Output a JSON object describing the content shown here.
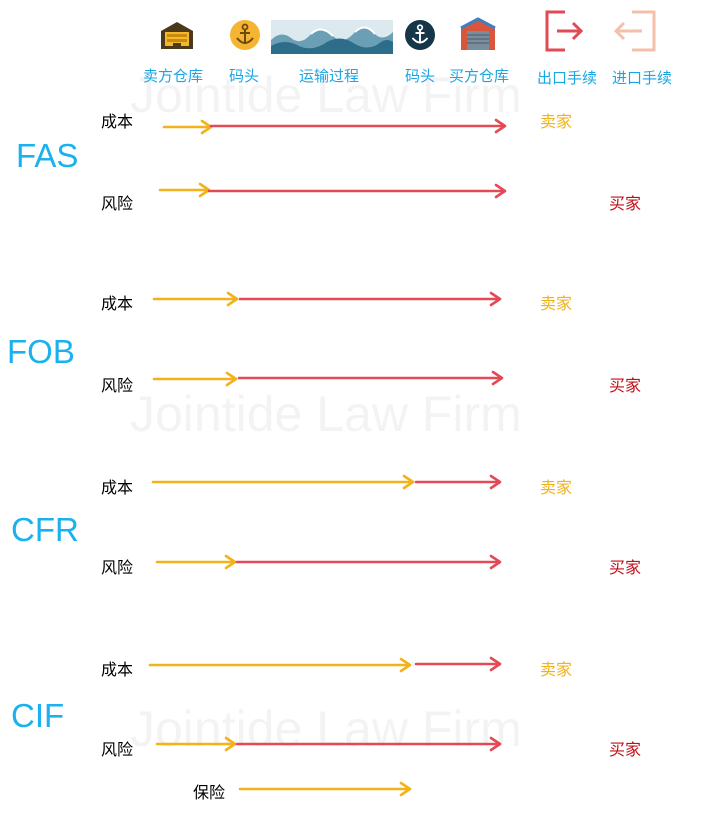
{
  "watermark": "Jointide Law Firm",
  "header": {
    "labels": [
      "卖方仓库",
      "码头",
      "运输过程",
      "码头",
      "买方仓库",
      "出口手续",
      "进口手续"
    ],
    "icons": [
      "warehouse-icon",
      "anchor-icon",
      "ocean-waves-icon",
      "anchor-icon",
      "warehouse-icon",
      "export-icon",
      "import-icon"
    ]
  },
  "rows": {
    "cost": "成本",
    "risk": "风险",
    "insurance": "保险"
  },
  "parties": {
    "seller": "卖家",
    "buyer": "买家"
  },
  "terms": [
    {
      "name": "FAS",
      "cost_party": "seller",
      "risk_party": "buyer"
    },
    {
      "name": "FOB",
      "cost_party": "seller",
      "risk_party": "buyer"
    },
    {
      "name": "CFR",
      "cost_party": "seller",
      "risk_party": "buyer"
    },
    {
      "name": "CIF",
      "cost_party": "seller",
      "risk_party": "buyer"
    }
  ],
  "colors": {
    "seller_arrow": "#f2b21a",
    "buyer_arrow": "#e24a55",
    "term_text": "#1ab2ee",
    "header_text": "#1aa6e4",
    "seller_text": "#f2b21a",
    "buyer_text": "#c0101a"
  }
}
